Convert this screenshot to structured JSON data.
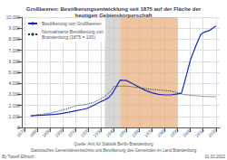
{
  "chart_data": {
    "type": "line",
    "title": "Großbeeren: Bevölkerungsentwicklung seit 1875 auf der Fläche der\nheutigen Gebietskörperschaft",
    "series": [
      {
        "name": "Bevölkerung von Großbeeren",
        "color": "#1428cc",
        "line_style": "solid",
        "x": [
          1875,
          1880,
          1885,
          1890,
          1895,
          1900,
          1905,
          1910,
          1915,
          1919,
          1925,
          1930,
          1933,
          1936,
          1939,
          1940,
          1945,
          1950,
          1955,
          1960,
          1965,
          1970,
          1975,
          1980,
          1985,
          1990,
          1993,
          1995,
          2000,
          2005,
          2008,
          2010,
          2015,
          2020
        ],
        "values": [
          1050,
          1100,
          1120,
          1160,
          1200,
          1280,
          1380,
          1500,
          1620,
          1720,
          2050,
          2350,
          2500,
          2700,
          3100,
          3300,
          4300,
          4250,
          3950,
          3650,
          3350,
          3150,
          3000,
          2950,
          2950,
          3050,
          3100,
          3900,
          6100,
          7600,
          8400,
          8600,
          8800,
          9200
        ]
      },
      {
        "name": "Normalisierte Bevölkerung von\nBrandenburg (1875 = 100)",
        "color": "#333333",
        "line_style": "dotted",
        "x": [
          1875,
          1880,
          1885,
          1890,
          1895,
          1900,
          1905,
          1910,
          1915,
          1919,
          1925,
          1930,
          1933,
          1936,
          1939,
          1940,
          1945,
          1950,
          1955,
          1960,
          1965,
          1970,
          1975,
          1980,
          1985,
          1990,
          1993,
          1995,
          2000,
          2005,
          2010,
          2015,
          2020
        ],
        "values": [
          1050,
          1150,
          1220,
          1300,
          1420,
          1580,
          1750,
          1950,
          2050,
          2100,
          2300,
          2600,
          2800,
          3100,
          3500,
          3700,
          3750,
          3750,
          3680,
          3600,
          3520,
          3450,
          3400,
          3350,
          3300,
          3150,
          3050,
          2980,
          2920,
          2870,
          2820,
          2790,
          2800
        ]
      }
    ],
    "shaded_spans": [
      {
        "start": 1933,
        "end": 1945,
        "color": "#c8c8c8"
      },
      {
        "start": 1945,
        "end": 1990,
        "color": "#e8b080"
      }
    ],
    "xlim": [
      1868,
      2023
    ],
    "xticks": [
      1870,
      1880,
      1890,
      1900,
      1910,
      1920,
      1930,
      1940,
      1950,
      1960,
      1970,
      1980,
      1990,
      2000,
      2010,
      2020
    ],
    "ylim": [
      0,
      10000
    ],
    "yticks": [
      0,
      {
        "value": 1000,
        "label": "1.000"
      },
      {
        "value": 2000,
        "label": "2.000"
      },
      {
        "value": 3000,
        "label": "3.000"
      },
      {
        "value": 4000,
        "label": "4.000"
      },
      {
        "value": 5000,
        "label": "5.000"
      },
      {
        "value": 6000,
        "label": "6.000"
      },
      {
        "value": 7000,
        "label": "7.000"
      },
      {
        "value": 8000,
        "label": "8.000"
      },
      {
        "value": 9000,
        "label": "9.000"
      },
      {
        "value": 10000,
        "label": "10.000"
      }
    ],
    "grid": true,
    "legend": "upper left",
    "annotations": [
      "Quelle: Amt für Statistik Berlin-Brandenburg",
      "Statistisches Gemeindeverzeichnis und Bevölkerung des Gemeinden im Land Brandenburg",
      "By Twoelf Elfrisch",
      "01.01.2022"
    ]
  }
}
